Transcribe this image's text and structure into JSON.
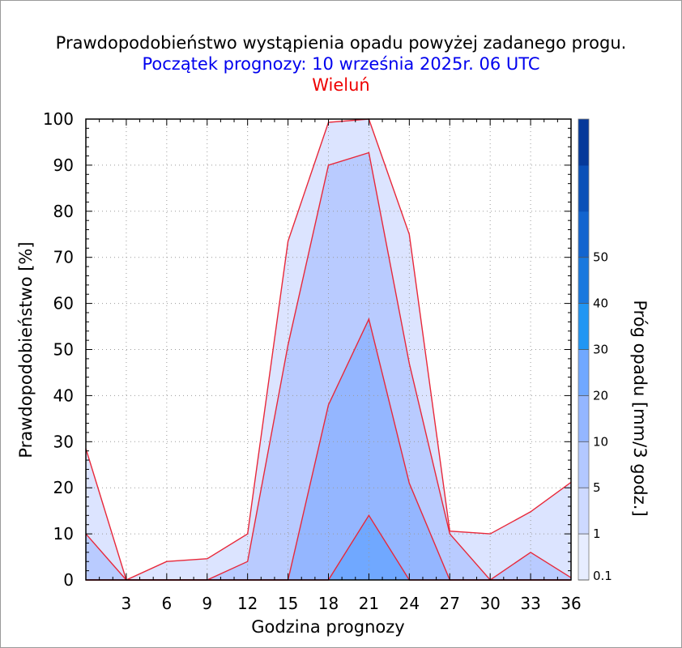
{
  "chart_data": {
    "type": "area",
    "title": "Prawdopodobieństwo wystąpienia opadu powyżej zadanego progu.",
    "subtitle": "Początek prognozy: 10 września 2025r. 06 UTC",
    "location": "Wieluń",
    "xlabel": "Godzina prognozy",
    "ylabel": "Prawdopodobieństwo [%]",
    "colorbar_label": "Próg opadu [mm/3 godz.]",
    "x": [
      0,
      3,
      6,
      9,
      12,
      15,
      18,
      21,
      24,
      27,
      30,
      33,
      36
    ],
    "x_ticks": [
      "3",
      "6",
      "9",
      "12",
      "15",
      "18",
      "21",
      "24",
      "27",
      "30",
      "33",
      "36"
    ],
    "y_ticks": [
      "0",
      "10",
      "20",
      "30",
      "40",
      "50",
      "60",
      "70",
      "80",
      "90",
      "100"
    ],
    "xlim": [
      0,
      36
    ],
    "ylim": [
      0,
      100
    ],
    "series": [
      {
        "threshold": 0.1,
        "color": "#dce4ff",
        "values": [
          28.5,
          0,
          4,
          4.6,
          10,
          73.5,
          99.3,
          100,
          75,
          10.6,
          10,
          14.8,
          21.2
        ]
      },
      {
        "threshold": 1,
        "color": "#b9cbff",
        "values": [
          10,
          0,
          0,
          0,
          4,
          51,
          90,
          92.7,
          47,
          10,
          0,
          6,
          0.5
        ]
      },
      {
        "threshold": 5,
        "color": "#94b6ff",
        "values": [
          0,
          0,
          0,
          0,
          0,
          0,
          38,
          56.6,
          21,
          0,
          0,
          0,
          0
        ]
      },
      {
        "threshold": 10,
        "color": "#70a8ff",
        "values": [
          0,
          0,
          0,
          0,
          0,
          0,
          0,
          14,
          0,
          0,
          0,
          0,
          0
        ]
      }
    ],
    "colorbar": {
      "ticks": [
        "0.1",
        "1",
        "5",
        "10",
        "20",
        "30",
        "40",
        "50"
      ],
      "colors": [
        "#e7edff",
        "#cdd9ff",
        "#b3c8ff",
        "#94b6ff",
        "#70a8ff",
        "#2196f3",
        "#1978de",
        "#1364cf",
        "#0b50b8",
        "#06399a"
      ]
    },
    "grid": true,
    "line_color": "#e8283a"
  }
}
